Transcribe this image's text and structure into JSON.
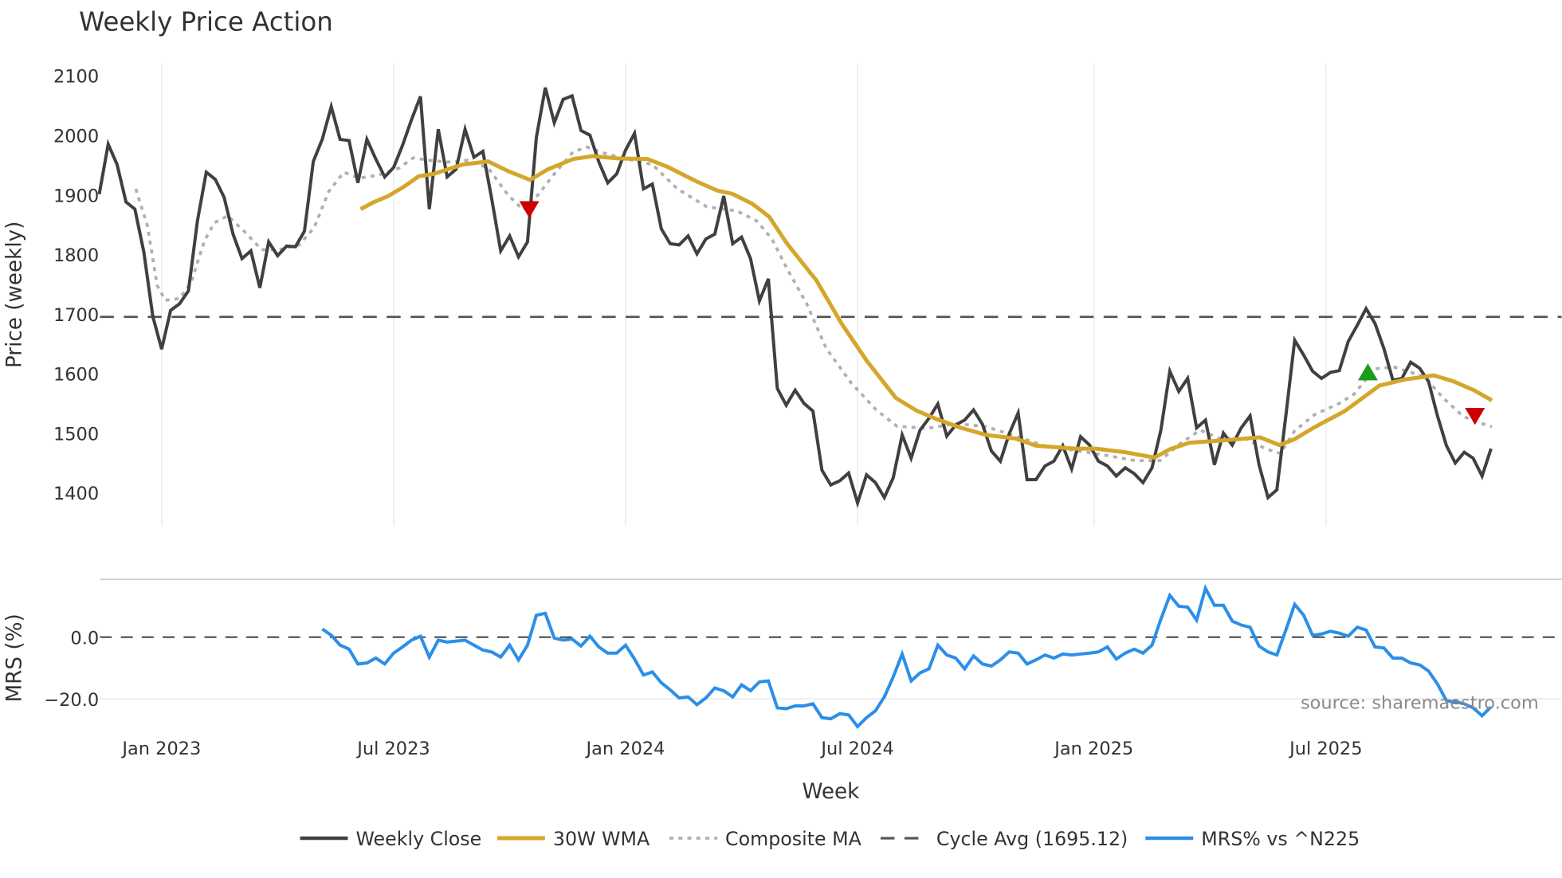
{
  "chart_data": {
    "type": "line",
    "title": "Weekly Price Action",
    "x_unit": "week index (0 = first plotted week, ~late Nov 2022)",
    "xlabel": "Week",
    "x_ticks": [
      {
        "label": "Jan 2023",
        "week": 7
      },
      {
        "label": "Jul 2023",
        "week": 33
      },
      {
        "label": "Jan 2024",
        "week": 59
      },
      {
        "label": "Jul 2024",
        "week": 85
      },
      {
        "label": "Jan 2025",
        "week": 111.5
      },
      {
        "label": "Jul 2025",
        "week": 137.5
      }
    ],
    "price_panel": {
      "ylabel": "Price (weekly)",
      "ylim": [
        1345,
        2120
      ],
      "y_ticks": [
        "1400",
        "1500",
        "1600",
        "1700",
        "1800",
        "1900",
        "2000",
        "2100"
      ],
      "weekly_close": {
        "name": "Weekly Close",
        "color": "#404040",
        "start_week": 0,
        "values": [
          1901,
          1985,
          1951,
          1888,
          1876,
          1804,
          1696,
          1641,
          1706,
          1717,
          1739,
          1856,
          1938,
          1926,
          1896,
          1834,
          1793,
          1806,
          1744,
          1821,
          1798,
          1814,
          1813,
          1839,
          1956,
          1993,
          2048,
          1993,
          1991,
          1920,
          1993,
          1960,
          1930,
          1946,
          1983,
          2026,
          2065,
          1876,
          2010,
          1930,
          1943,
          2010,
          1963,
          1973,
          1893,
          1806,
          1831,
          1796,
          1821,
          1996,
          2080,
          2021,
          2060,
          2066,
          2008,
          2000,
          1955,
          1920,
          1935,
          1975,
          2003,
          1910,
          1918,
          1843,
          1818,
          1816,
          1831,
          1801,
          1826,
          1834,
          1898,
          1818,
          1829,
          1793,
          1722,
          1759,
          1575,
          1547,
          1572,
          1550,
          1537,
          1438,
          1413,
          1420,
          1433,
          1383,
          1430,
          1417,
          1392,
          1425,
          1497,
          1458,
          1505,
          1525,
          1549,
          1495,
          1514,
          1522,
          1539,
          1515,
          1470,
          1453,
          1499,
          1534,
          1422,
          1422,
          1445,
          1453,
          1479,
          1440,
          1494,
          1480,
          1453,
          1445,
          1428,
          1442,
          1432,
          1417,
          1442,
          1505,
          1604,
          1570,
          1592,
          1509,
          1522,
          1447,
          1500,
          1480,
          1509,
          1529,
          1447,
          1392,
          1405,
          1529,
          1656,
          1631,
          1604,
          1592,
          1602,
          1605,
          1654,
          1681,
          1709,
          1684,
          1642,
          1589,
          1592,
          1619,
          1609,
          1587,
          1529,
          1479,
          1450,
          1468,
          1458,
          1428,
          1474
        ]
      },
      "wma30": {
        "name": "30W WMA",
        "color": "#d4a62a",
        "points": [
          [
            29.3,
            1876
          ],
          [
            30.8,
            1888
          ],
          [
            32.4,
            1898
          ],
          [
            34.1,
            1913
          ],
          [
            35.8,
            1931
          ],
          [
            37.5,
            1935
          ],
          [
            39.1,
            1943
          ],
          [
            40.8,
            1951
          ],
          [
            43.6,
            1956
          ],
          [
            45.8,
            1940
          ],
          [
            48.3,
            1925
          ],
          [
            50.3,
            1943
          ],
          [
            53.1,
            1960
          ],
          [
            55.3,
            1965
          ],
          [
            58.1,
            1961
          ],
          [
            61.5,
            1960
          ],
          [
            63.7,
            1947
          ],
          [
            67.0,
            1922
          ],
          [
            69.3,
            1907
          ],
          [
            70.9,
            1902
          ],
          [
            73.2,
            1885
          ],
          [
            75.1,
            1863
          ],
          [
            77.1,
            1818
          ],
          [
            80.4,
            1756
          ],
          [
            83.2,
            1684
          ],
          [
            86.0,
            1622
          ],
          [
            89.3,
            1559
          ],
          [
            91.6,
            1538
          ],
          [
            93.8,
            1524
          ],
          [
            96.6,
            1509
          ],
          [
            99.4,
            1497
          ],
          [
            102.7,
            1491
          ],
          [
            105.0,
            1479
          ],
          [
            109.4,
            1474
          ],
          [
            111.7,
            1474
          ],
          [
            115.0,
            1468
          ],
          [
            118.3,
            1459
          ],
          [
            120.0,
            1473
          ],
          [
            122.2,
            1484
          ],
          [
            126.2,
            1488
          ],
          [
            130.1,
            1493
          ],
          [
            132.3,
            1480
          ],
          [
            134.0,
            1490
          ],
          [
            136.2,
            1510
          ],
          [
            139.6,
            1537
          ],
          [
            143.5,
            1580
          ],
          [
            146.3,
            1590
          ],
          [
            149.6,
            1597
          ],
          [
            151.8,
            1587
          ],
          [
            154.1,
            1572
          ],
          [
            156.1,
            1555
          ]
        ]
      },
      "composite_ma": {
        "name": "Composite MA",
        "color": "#b0b0b0",
        "points": [
          [
            4.1,
            1910
          ],
          [
            5.4,
            1848
          ],
          [
            6.5,
            1748
          ],
          [
            7.4,
            1723
          ],
          [
            9.0,
            1726
          ],
          [
            10.3,
            1753
          ],
          [
            11.8,
            1823
          ],
          [
            12.9,
            1853
          ],
          [
            14.4,
            1865
          ],
          [
            16.3,
            1838
          ],
          [
            18.2,
            1808
          ],
          [
            20.2,
            1808
          ],
          [
            22.4,
            1816
          ],
          [
            24.1,
            1845
          ],
          [
            25.7,
            1905
          ],
          [
            27.4,
            1938
          ],
          [
            29.1,
            1928
          ],
          [
            31.3,
            1933
          ],
          [
            33.6,
            1945
          ],
          [
            35.2,
            1962
          ],
          [
            36.9,
            1958
          ],
          [
            39.1,
            1955
          ],
          [
            41.3,
            1958
          ],
          [
            43.6,
            1945
          ],
          [
            45.8,
            1900
          ],
          [
            47.5,
            1875
          ],
          [
            49.2,
            1900
          ],
          [
            50.9,
            1933
          ],
          [
            53.1,
            1972
          ],
          [
            54.7,
            1980
          ],
          [
            57.0,
            1968
          ],
          [
            59.2,
            1960
          ],
          [
            62.0,
            1951
          ],
          [
            64.8,
            1910
          ],
          [
            68.1,
            1880
          ],
          [
            71.5,
            1873
          ],
          [
            73.7,
            1856
          ],
          [
            75.4,
            1826
          ],
          [
            77.1,
            1776
          ],
          [
            79.3,
            1717
          ],
          [
            81.5,
            1642
          ],
          [
            84.3,
            1584
          ],
          [
            87.1,
            1539
          ],
          [
            89.4,
            1512
          ],
          [
            92.7,
            1508
          ],
          [
            96.0,
            1516
          ],
          [
            99.4,
            1511
          ],
          [
            102.7,
            1495
          ],
          [
            106.1,
            1478
          ],
          [
            109.4,
            1471
          ],
          [
            112.8,
            1463
          ],
          [
            116.1,
            1454
          ],
          [
            118.9,
            1454
          ],
          [
            121.2,
            1483
          ],
          [
            123.4,
            1505
          ],
          [
            125.6,
            1491
          ],
          [
            128.4,
            1491
          ],
          [
            130.7,
            1474
          ],
          [
            132.4,
            1466
          ],
          [
            134.0,
            1504
          ],
          [
            136.2,
            1531
          ],
          [
            139.0,
            1550
          ],
          [
            140.7,
            1566
          ],
          [
            142.9,
            1608
          ],
          [
            145.1,
            1611
          ],
          [
            148.5,
            1595
          ],
          [
            150.7,
            1558
          ],
          [
            152.9,
            1528
          ],
          [
            154.6,
            1518
          ],
          [
            156.1,
            1511
          ]
        ]
      },
      "cycle_avg": {
        "name": "Cycle Avg (1695.12)",
        "value": 1695.12,
        "color": "#555555"
      },
      "signals": [
        {
          "type": "sell",
          "week": 48.2,
          "value": 1876,
          "color": "#cc0000"
        },
        {
          "type": "buy",
          "week": 142.2,
          "value": 1602,
          "color": "#1a9e1a"
        },
        {
          "type": "sell",
          "week": 154.2,
          "value": 1529,
          "color": "#cc0000"
        }
      ]
    },
    "mrs_panel": {
      "ylabel": "MRS (%)",
      "ylim": [
        -33,
        19
      ],
      "y_ticks": [
        {
          "label": "0.0",
          "value": 0
        },
        {
          "label": "−20.0",
          "value": -20
        }
      ],
      "zero_line": 0,
      "series": {
        "name": "MRS% vs ^N225",
        "color": "#2b8fe8",
        "start_week": 25,
        "values": [
          2.6,
          0.6,
          -2.6,
          -3.9,
          -8.7,
          -8.4,
          -6.8,
          -8.7,
          -5.2,
          -3.2,
          -1.0,
          0.3,
          -6.5,
          -1.0,
          -1.6,
          -1.3,
          -1.0,
          -2.6,
          -4.2,
          -4.8,
          -6.5,
          -2.6,
          -7.4,
          -2.6,
          7.1,
          7.7,
          -0.3,
          -1.0,
          -0.6,
          -2.9,
          0.3,
          -3.2,
          -5.2,
          -5.2,
          -2.6,
          -7.1,
          -12.3,
          -11.3,
          -14.8,
          -17.1,
          -19.7,
          -19.4,
          -21.9,
          -19.7,
          -16.5,
          -17.4,
          -19.4,
          -15.5,
          -17.4,
          -14.5,
          -14.2,
          -22.9,
          -23.2,
          -22.3,
          -22.3,
          -21.6,
          -26.1,
          -26.5,
          -24.8,
          -25.2,
          -29.0,
          -26.1,
          -23.9,
          -19.4,
          -12.9,
          -5.5,
          -14.2,
          -11.6,
          -10.3,
          -2.6,
          -5.8,
          -6.8,
          -10.3,
          -6.1,
          -8.7,
          -9.4,
          -7.4,
          -4.8,
          -5.2,
          -8.7,
          -7.4,
          -5.8,
          -6.8,
          -5.5,
          -5.8,
          -5.5,
          -5.2,
          -4.8,
          -3.2,
          -7.1,
          -5.2,
          -3.9,
          -5.2,
          -2.6,
          5.8,
          13.5,
          10.0,
          9.7,
          5.5,
          15.8,
          10.3,
          10.3,
          5.2,
          3.9,
          3.2,
          -2.9,
          -4.8,
          -5.8,
          2.3,
          10.6,
          7.1,
          0.6,
          1.0,
          1.9,
          1.3,
          0.3,
          3.2,
          2.3,
          -3.2,
          -3.5,
          -6.8,
          -6.8,
          -8.4,
          -9.0,
          -11.0,
          -15.2,
          -20.6,
          -21.0,
          -21.6,
          -22.9,
          -25.5,
          -22.6
        ]
      }
    },
    "legend": {
      "placement": "bottom-center",
      "items": [
        "Weekly Close",
        "30W WMA",
        "Composite MA",
        "Cycle Avg (1695.12)",
        "MRS% vs ^N225"
      ]
    },
    "annotation": "source: sharemaestro.com"
  }
}
